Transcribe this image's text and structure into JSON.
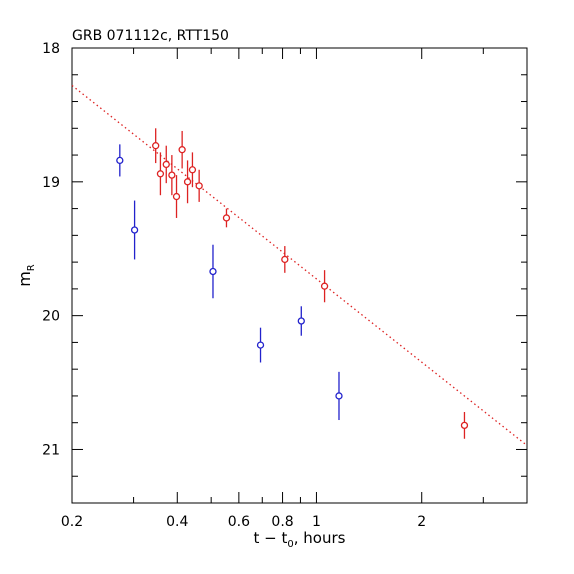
{
  "chart_data": {
    "type": "scatter",
    "title": "GRB 071112c, RTT150",
    "xlabel": "t − t",
    "xlabel_sub": "0",
    "xlabel_suffix": ", hours",
    "ylabel": "m",
    "ylabel_sub": "R",
    "x_scale": "log",
    "xlim": [
      0.2,
      4.0
    ],
    "ylim": [
      21.4,
      18.0
    ],
    "y_inverted": true,
    "x_ticks": [
      {
        "value": 0.2,
        "label": "0.2"
      },
      {
        "value": 0.4,
        "label": "0.4"
      },
      {
        "value": 0.6,
        "label": "0.6"
      },
      {
        "value": 0.8,
        "label": "0.8"
      },
      {
        "value": 1.0,
        "label": "1"
      },
      {
        "value": 2.0,
        "label": "2"
      }
    ],
    "y_ticks": [
      {
        "value": 18,
        "label": "18"
      },
      {
        "value": 19,
        "label": "19"
      },
      {
        "value": 20,
        "label": "20"
      },
      {
        "value": 21,
        "label": "21"
      }
    ],
    "grid": false,
    "series": [
      {
        "color": "#dd2222",
        "points": [
          {
            "x": 0.347,
            "y": 18.73,
            "err": 0.13
          },
          {
            "x": 0.358,
            "y": 18.94,
            "err": 0.16
          },
          {
            "x": 0.372,
            "y": 18.87,
            "err": 0.14
          },
          {
            "x": 0.386,
            "y": 18.95,
            "err": 0.15
          },
          {
            "x": 0.398,
            "y": 19.11,
            "err": 0.16
          },
          {
            "x": 0.413,
            "y": 18.76,
            "err": 0.14
          },
          {
            "x": 0.428,
            "y": 19.0,
            "err": 0.16
          },
          {
            "x": 0.442,
            "y": 18.91,
            "err": 0.13
          },
          {
            "x": 0.462,
            "y": 19.03,
            "err": 0.12
          },
          {
            "x": 0.553,
            "y": 19.27,
            "err": 0.07
          },
          {
            "x": 0.812,
            "y": 19.58,
            "err": 0.1
          },
          {
            "x": 1.055,
            "y": 19.78,
            "err": 0.12
          },
          {
            "x": 2.65,
            "y": 20.82,
            "err": 0.1
          }
        ]
      },
      {
        "color": "#2222cc",
        "points": [
          {
            "x": 0.274,
            "y": 18.84,
            "err": 0.12
          },
          {
            "x": 0.302,
            "y": 19.36,
            "err": 0.22
          },
          {
            "x": 0.506,
            "y": 19.67,
            "err": 0.2
          },
          {
            "x": 0.692,
            "y": 20.22,
            "err": 0.13
          },
          {
            "x": 0.905,
            "y": 20.04,
            "err": 0.11
          },
          {
            "x": 1.16,
            "y": 20.6,
            "err": 0.18
          }
        ]
      }
    ],
    "fit_line": {
      "color": "#dd2222",
      "style": "dotted",
      "x": [
        0.2,
        4.0
      ],
      "y": [
        18.28,
        20.97
      ]
    }
  }
}
